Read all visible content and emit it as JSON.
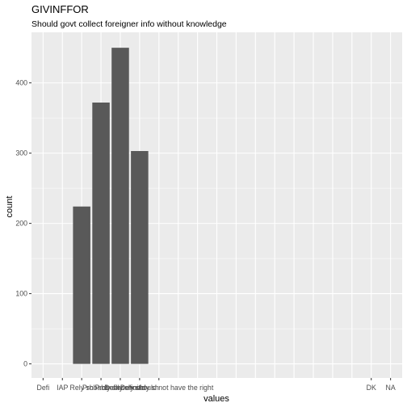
{
  "chart_data": {
    "type": "bar",
    "title": "GIVINFFOR",
    "subtitle": "Should govt collect foreigner info without knowledge",
    "xlabel": "values",
    "ylabel": "count",
    "categories": [
      "Definitely should have the right",
      "IAP",
      "Rely should have the right",
      "Probably should have the right",
      "Probably should not have the right",
      "Definitely should not have the right",
      "Definitely should not have the right",
      "",
      "",
      "",
      "",
      "",
      "",
      "",
      "",
      "",
      "",
      "DK",
      "NA"
    ],
    "tick_labels": [
      "Defi",
      "IAP",
      "Rely sh",
      "Probably sh",
      "Probably should",
      "Definitely sh",
      "Definitely should not have the right",
      "DK",
      "NA"
    ],
    "bars": [
      {
        "category_index": 2,
        "value": 224
      },
      {
        "category_index": 3,
        "value": 372
      },
      {
        "category_index": 4,
        "value": 450
      },
      {
        "category_index": 5,
        "value": 303
      }
    ],
    "yticks": [
      0,
      100,
      200,
      300,
      400
    ],
    "ylim": [
      -20,
      472
    ],
    "grid": true,
    "bar_color": "#595959",
    "panel_color": "#ebebeb",
    "grid_color": "#ffffff"
  }
}
